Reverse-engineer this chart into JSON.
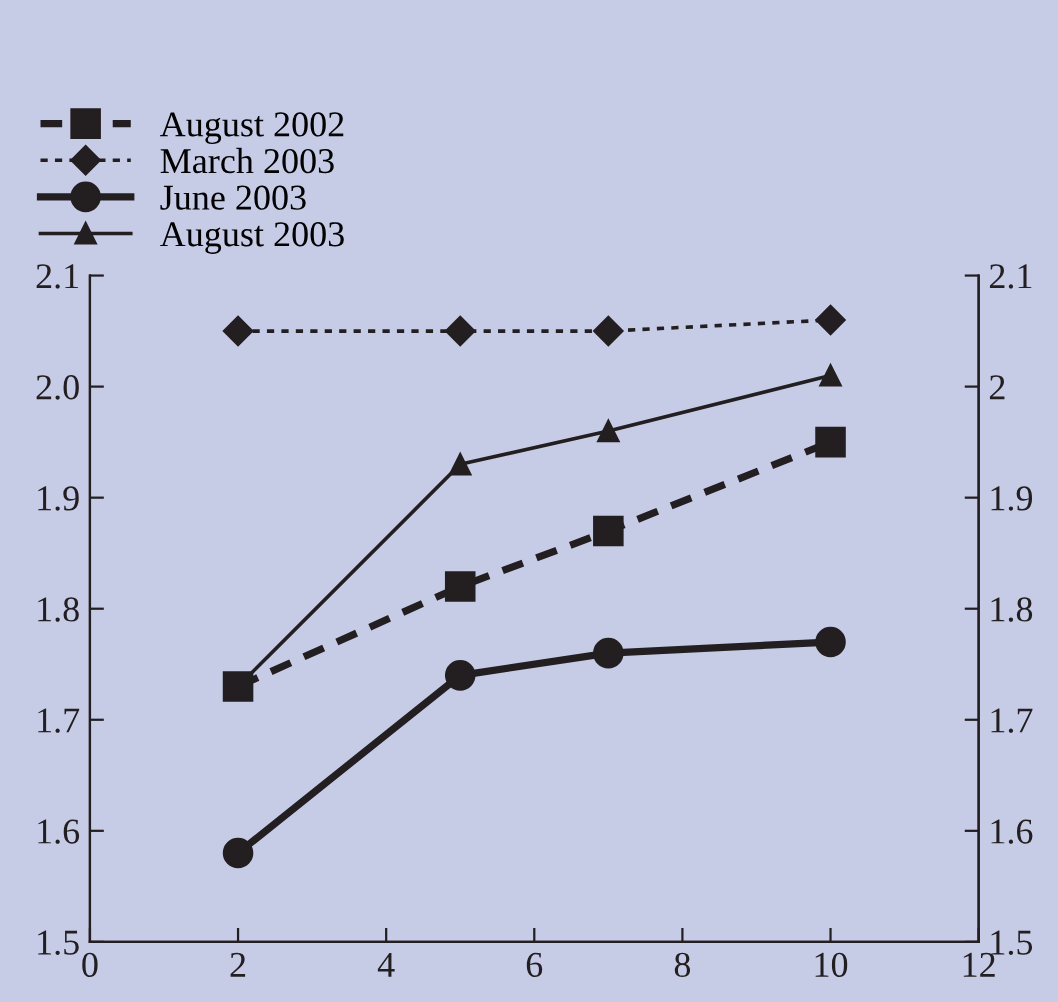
{
  "chart_data": {
    "type": "line",
    "x": [
      2,
      5,
      7,
      10
    ],
    "series": [
      {
        "name": "August 2002",
        "color": "#231f20",
        "values": [
          1.73,
          1.82,
          1.87,
          1.95
        ],
        "marker": "square",
        "line_style": "dashed"
      },
      {
        "name": "March 2003",
        "color": "#231f20",
        "values": [
          2.05,
          2.05,
          2.05,
          2.06
        ],
        "marker": "diamond",
        "line_style": "dotted"
      },
      {
        "name": "June 2003",
        "color": "#231f20",
        "values": [
          1.58,
          1.74,
          1.76,
          1.77
        ],
        "marker": "circle",
        "line_style": "solid"
      },
      {
        "name": "August 2003",
        "color": "#231f20",
        "values": [
          1.73,
          1.93,
          1.96,
          2.01
        ],
        "marker": "triangle",
        "line_style": "solid"
      }
    ],
    "xlim": [
      0,
      12
    ],
    "xticks": [
      0,
      2,
      4,
      6,
      8,
      10,
      12
    ],
    "ylim": [
      1.5,
      2.1
    ],
    "yticks": [
      1.5,
      1.6,
      1.7,
      1.8,
      1.9,
      {
        "value": 2.0,
        "label": "2.0"
      },
      2.1
    ],
    "y2lim": [
      1.5,
      2.1
    ],
    "y2ticks": [
      1.5,
      1.6,
      1.7,
      1.8,
      1.9,
      {
        "value": 2,
        "label": "2"
      },
      2.1
    ],
    "grid": false,
    "legend": "top left"
  }
}
